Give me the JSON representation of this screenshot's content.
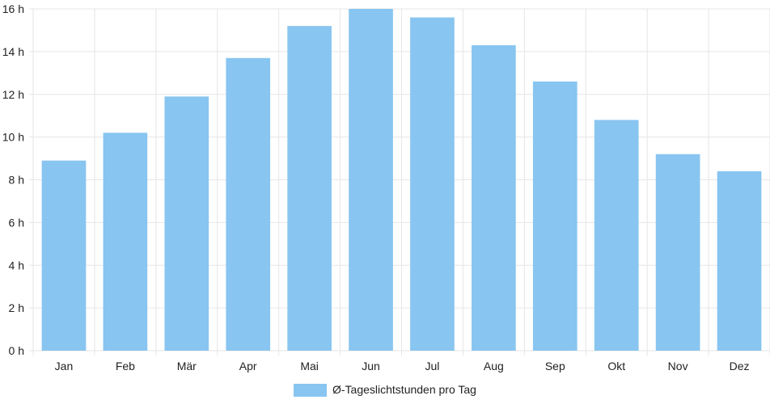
{
  "chart_data": {
    "type": "bar",
    "categories": [
      "Jan",
      "Feb",
      "Mär",
      "Apr",
      "Mai",
      "Jun",
      "Jul",
      "Aug",
      "Sep",
      "Okt",
      "Nov",
      "Dez"
    ],
    "series": [
      {
        "name": "Ø-Tageslichtstunden pro Tag",
        "values": [
          8.9,
          10.2,
          11.9,
          13.7,
          15.2,
          16.0,
          15.6,
          14.3,
          12.6,
          10.8,
          9.2,
          8.4
        ],
        "color": "#88c5f0"
      }
    ],
    "y_ticks": [
      "0 h",
      "2 h",
      "4 h",
      "6 h",
      "8 h",
      "10 h",
      "12 h",
      "14 h",
      "16 h"
    ],
    "ylim": [
      0,
      16
    ],
    "grid": true,
    "legend_position": "bottom",
    "colors": {
      "bar": "#88c5f0",
      "grid": "#e6e6e6",
      "text": "#222222"
    }
  }
}
